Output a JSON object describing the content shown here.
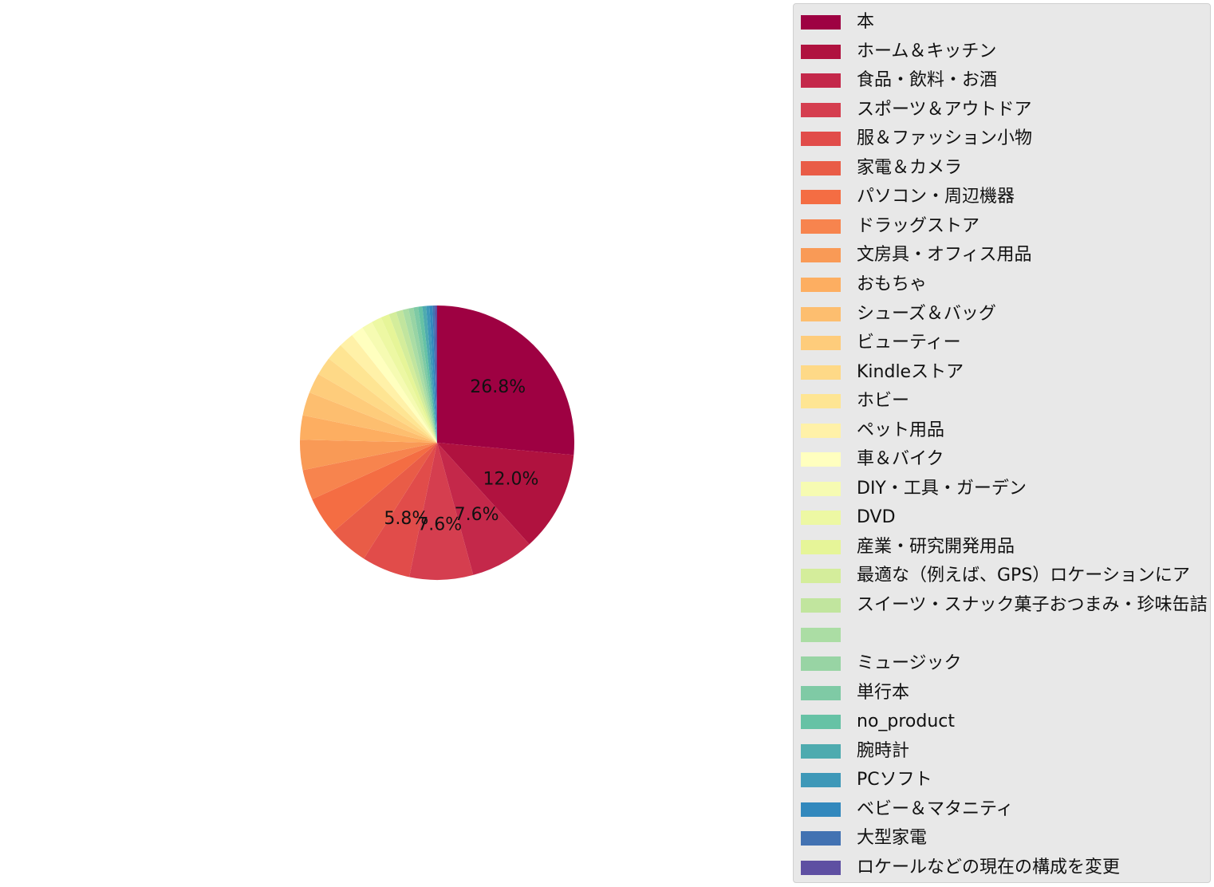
{
  "chart_data": {
    "type": "pie",
    "start_angle_deg": 90,
    "direction": "clockwise",
    "legend_position": "right",
    "slices": [
      {
        "label": "本",
        "value": 26.8,
        "color": "#9e0142"
      },
      {
        "label": "ホーム＆キッチン",
        "value": 12.0,
        "color": "#b0123f"
      },
      {
        "label": "食品・飲料・お酒",
        "value": 7.6,
        "color": "#c4284a"
      },
      {
        "label": "スポーツ＆アウトドア",
        "value": 7.6,
        "color": "#d53e4f"
      },
      {
        "label": "服＆ファッション小物",
        "value": 5.8,
        "color": "#e14c4a"
      },
      {
        "label": "家電＆カメラ",
        "value": 4.8,
        "color": "#e95c47"
      },
      {
        "label": "パソコン・周辺機器",
        "value": 4.6,
        "color": "#f46d43"
      },
      {
        "label": "ドラッグストア",
        "value": 3.6,
        "color": "#f7844e"
      },
      {
        "label": "文房具・オフィス用品",
        "value": 3.6,
        "color": "#f99a56"
      },
      {
        "label": "おもちゃ",
        "value": 2.9,
        "color": "#fdae61"
      },
      {
        "label": "シューズ＆バッグ",
        "value": 2.8,
        "color": "#fdbe6f"
      },
      {
        "label": "ビューティー",
        "value": 2.4,
        "color": "#fecc7b"
      },
      {
        "label": "Kindleストア",
        "value": 2.2,
        "color": "#fed987"
      },
      {
        "label": "ホビー",
        "value": 2.1,
        "color": "#fee593"
      },
      {
        "label": "ペット用品",
        "value": 1.8,
        "color": "#fff1a8"
      },
      {
        "label": "車＆バイク",
        "value": 1.5,
        "color": "#ffffbf"
      },
      {
        "label": "DIY・工具・ガーデン",
        "value": 1.3,
        "color": "#f6fbb2"
      },
      {
        "label": "DVD",
        "value": 1.2,
        "color": "#edf8a3"
      },
      {
        "label": "産業・研究開発用品",
        "value": 1.0,
        "color": "#e6f598"
      },
      {
        "label": "最適な（例えば、GPS）ロケーションにア",
        "value": 0.9,
        "color": "#d4ed9b"
      },
      {
        "label": "スイーツ・スナック菓子おつまみ・珍味缶詰",
        "value": 0.8,
        "color": "#c1e59e"
      },
      {
        "label": "",
        "value": 0.7,
        "color": "#abdda4"
      },
      {
        "label": "ミュージック",
        "value": 0.6,
        "color": "#98d4a4"
      },
      {
        "label": "単行本",
        "value": 0.55,
        "color": "#7fcaa5"
      },
      {
        "label": "no_product",
        "value": 0.5,
        "color": "#66c2a5"
      },
      {
        "label": "腕時計",
        "value": 0.45,
        "color": "#4eabaf"
      },
      {
        "label": "PCソフト",
        "value": 0.4,
        "color": "#3e98b8"
      },
      {
        "label": "ベビー＆マタニティ",
        "value": 0.35,
        "color": "#3288bd"
      },
      {
        "label": "大型家電",
        "value": 0.3,
        "color": "#4272b2"
      },
      {
        "label": "ロケールなどの現在の構成を変更",
        "value": 0.25,
        "color": "#5e4fa2"
      }
    ],
    "percent_labels": [
      {
        "slice": 0,
        "text": "26.8%"
      },
      {
        "slice": 1,
        "text": "12.0%"
      },
      {
        "slice": 2,
        "text": "7.6%"
      },
      {
        "slice": 3,
        "text": "7.6%"
      },
      {
        "slice": 4,
        "text": "5.8%"
      }
    ]
  }
}
